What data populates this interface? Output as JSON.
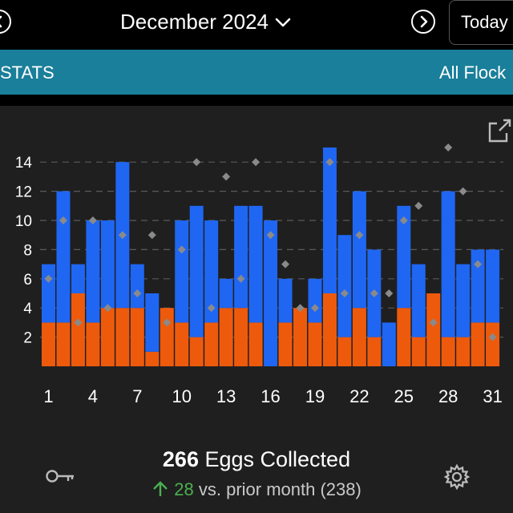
{
  "header": {
    "month": "December 2024",
    "today_label": "Today"
  },
  "tabs": {
    "stats_label": "STATS",
    "flock_label": "All Flock"
  },
  "summary": {
    "count": "266",
    "label": "Eggs Collected",
    "delta": "28",
    "compare_text": "vs. prior month (238)"
  },
  "colors": {
    "blue": "#1f66f2",
    "orange": "#ee5a0c",
    "marker": "#8a8a8a",
    "header_bar": "#1a7f9a"
  },
  "chart_data": {
    "type": "bar",
    "stacked": true,
    "x": [
      1,
      2,
      3,
      4,
      5,
      6,
      7,
      8,
      9,
      10,
      11,
      12,
      13,
      14,
      15,
      16,
      17,
      18,
      19,
      20,
      21,
      22,
      23,
      24,
      25,
      26,
      27,
      28,
      29,
      30,
      31
    ],
    "x_ticks": [
      1,
      4,
      7,
      10,
      13,
      16,
      19,
      22,
      25,
      28,
      31
    ],
    "y_ticks": [
      2,
      4,
      6,
      8,
      10,
      12,
      14
    ],
    "ylim": [
      0,
      16
    ],
    "grid": "dashed horizontal",
    "series": [
      {
        "color": "orange",
        "values": [
          3,
          3,
          5,
          3,
          4,
          4,
          4,
          1,
          4,
          3,
          2,
          3,
          4,
          4,
          3,
          0,
          3,
          4,
          3,
          5,
          2,
          4,
          2,
          0,
          4,
          2,
          5,
          2,
          2,
          3,
          3
        ]
      },
      {
        "color": "blue",
        "values": [
          4,
          9,
          2,
          7,
          6,
          10,
          3,
          4,
          0,
          7,
          9,
          7,
          2,
          7,
          8,
          10,
          3,
          0,
          3,
          10,
          7,
          8,
          6,
          3,
          7,
          5,
          0,
          10,
          5,
          5,
          5
        ]
      },
      {
        "type": "scatter",
        "marker": "diamond",
        "values": [
          6,
          10,
          3,
          10,
          4,
          9,
          5,
          9,
          3,
          8,
          14,
          4,
          13,
          6,
          14,
          9,
          7,
          4,
          4,
          14,
          5,
          9,
          5,
          5,
          10,
          11,
          3,
          15,
          12,
          7,
          2
        ]
      }
    ]
  }
}
